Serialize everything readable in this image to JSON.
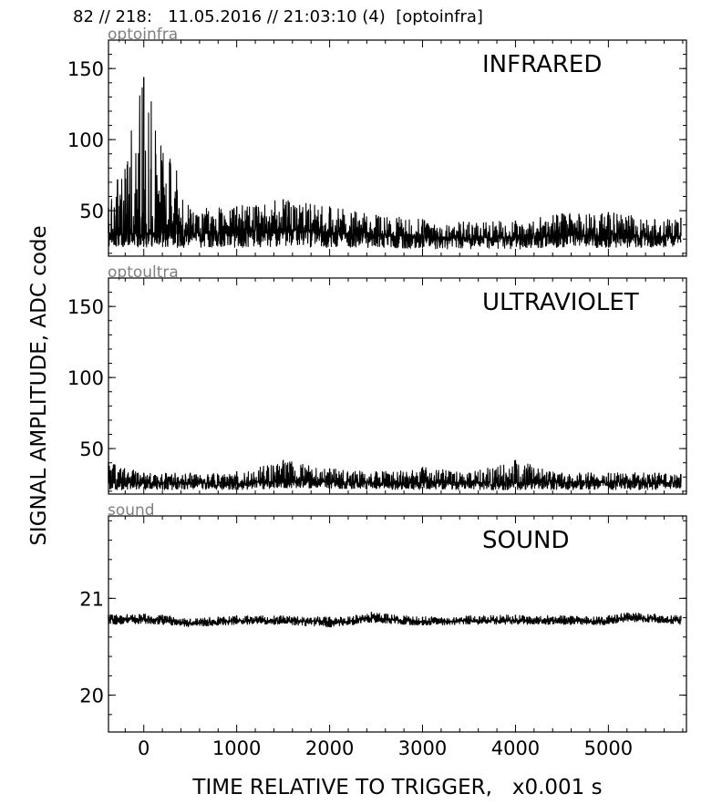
{
  "header": "82 // 218:   11.05.2016 // 21:03:10 (4)  [optoinfra]",
  "ylabel": "SIGNAL AMPLITUDE,  ADC code",
  "xlabel": "TIME RELATIVE TO TRIGGER,   x0.001 s",
  "colors": {
    "trace": "#000000",
    "channel_label": "#808080",
    "axes": "#000000"
  },
  "chart_data": [
    {
      "type": "line",
      "channel": "optoinfra",
      "title": "INFRARED",
      "xlim": [
        -380,
        5840
      ],
      "ylim": [
        18,
        170
      ],
      "xticks": [
        0,
        1000,
        2000,
        3000,
        4000,
        5000
      ],
      "yticks": [
        50,
        100,
        150
      ],
      "grid": false,
      "x": [
        -380,
        0,
        500,
        1000,
        1500,
        2000,
        2500,
        3000,
        3500,
        4000,
        4500,
        5000,
        5500,
        5780
      ],
      "y_mean": [
        34,
        34,
        34,
        35,
        37,
        35,
        33,
        32,
        31,
        31,
        33,
        33,
        32,
        32
      ],
      "y_min": [
        25,
        24,
        24,
        24,
        25,
        24,
        24,
        23,
        23,
        23,
        24,
        24,
        24,
        25
      ],
      "y_max": [
        52,
        144,
        51,
        53,
        58,
        53,
        47,
        44,
        42,
        43,
        48,
        49,
        44,
        45
      ]
    },
    {
      "type": "line",
      "channel": "optoultra",
      "title": "ULTRAVIOLET",
      "xlim": [
        -380,
        5840
      ],
      "ylim": [
        18,
        170
      ],
      "xticks": [
        0,
        1000,
        2000,
        3000,
        4000,
        5000
      ],
      "yticks": [
        50,
        100,
        150
      ],
      "grid": false,
      "x": [
        -380,
        0,
        500,
        1000,
        1500,
        2000,
        2500,
        3000,
        3500,
        4000,
        4500,
        5000,
        5500,
        5780
      ],
      "y_mean": [
        26,
        26,
        26,
        26,
        27,
        27,
        26,
        26,
        26,
        26,
        26,
        26,
        26,
        26
      ],
      "y_min": [
        21,
        21,
        21,
        21,
        22,
        22,
        21,
        21,
        21,
        21,
        21,
        21,
        21,
        22
      ],
      "y_max": [
        40,
        33,
        33,
        34,
        42,
        36,
        34,
        37,
        33,
        42,
        33,
        33,
        33,
        32
      ]
    },
    {
      "type": "line",
      "channel": "sound",
      "title": "SOUND",
      "xlim": [
        -380,
        5840
      ],
      "ylim": [
        19.62,
        21.85
      ],
      "xticks": [
        0,
        1000,
        2000,
        3000,
        4000,
        5000
      ],
      "yticks": [
        20,
        21
      ],
      "grid": false,
      "x": [
        -380,
        0,
        200,
        500,
        800,
        1000,
        1500,
        2000,
        2200,
        2450,
        2800,
        3000,
        3500,
        4000,
        4500,
        4900,
        5200,
        5500,
        5780
      ],
      "y_mean": [
        20.78,
        20.79,
        20.78,
        20.74,
        20.76,
        20.77,
        20.77,
        20.76,
        20.76,
        20.8,
        20.77,
        20.76,
        20.77,
        20.77,
        20.77,
        20.76,
        20.8,
        20.79,
        20.77
      ],
      "y_min": [
        20.73,
        20.74,
        20.73,
        20.7,
        20.72,
        20.73,
        20.73,
        20.7,
        20.72,
        20.75,
        20.73,
        20.72,
        20.73,
        20.73,
        20.73,
        20.72,
        20.76,
        20.75,
        20.73
      ],
      "y_max": [
        20.83,
        20.84,
        20.83,
        20.79,
        20.81,
        20.82,
        20.82,
        20.81,
        20.81,
        20.86,
        20.82,
        20.81,
        20.82,
        20.83,
        20.82,
        20.81,
        20.85,
        20.84,
        20.82
      ]
    }
  ]
}
